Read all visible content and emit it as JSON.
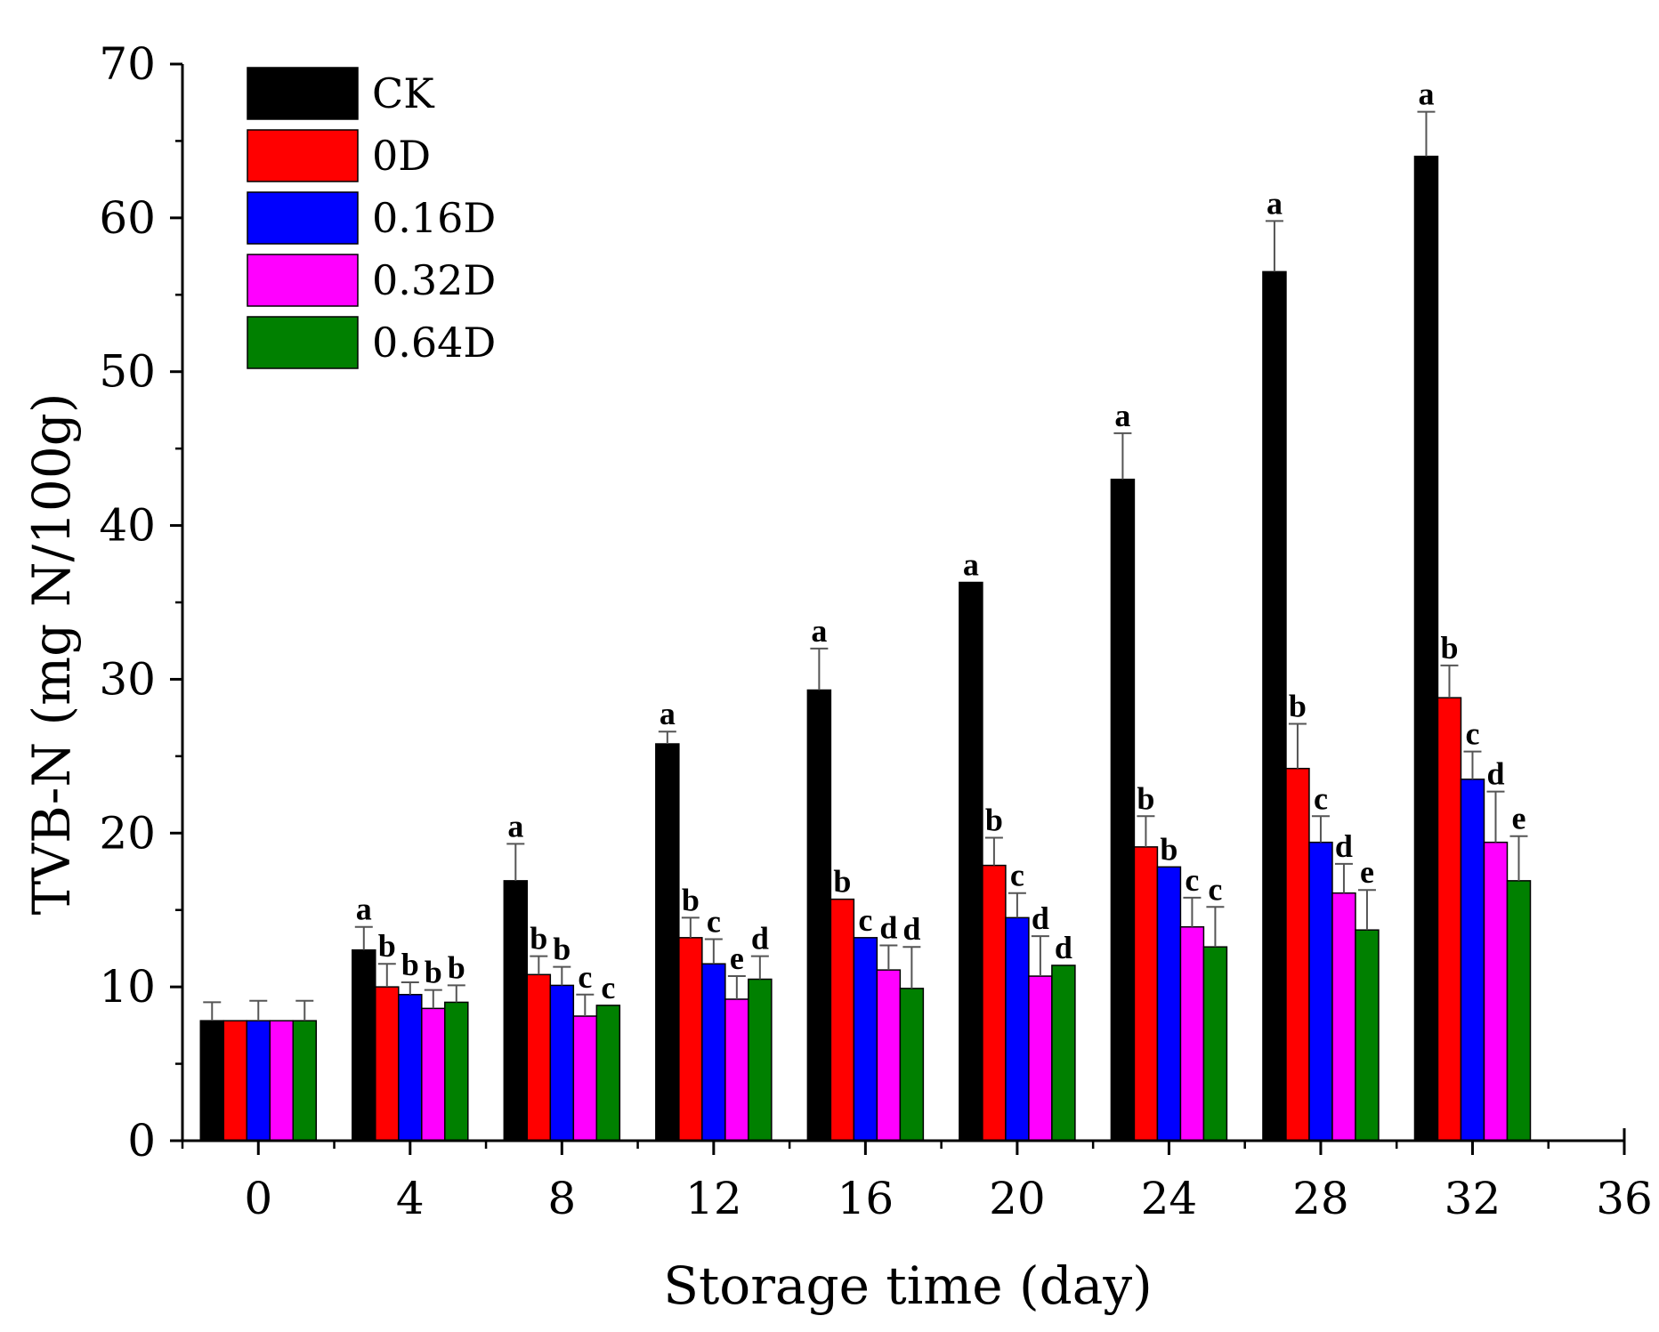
{
  "chart_data": {
    "type": "bar",
    "xlabel": "Storage time (day)",
    "ylabel": "TVB-N (mg N/100g)",
    "xlim": [
      -2,
      36
    ],
    "ylim": [
      0,
      70
    ],
    "x_ticks": [
      0,
      4,
      8,
      12,
      16,
      20,
      24,
      28,
      32,
      36
    ],
    "y_ticks": [
      0,
      10,
      20,
      30,
      40,
      50,
      60,
      70
    ],
    "categories": [
      0,
      4,
      8,
      12,
      16,
      20,
      24,
      28,
      32
    ],
    "legend_position": "top-left",
    "series": [
      {
        "name": "CK",
        "color": "#000000",
        "values": [
          7.8,
          12.4,
          16.9,
          25.8,
          29.3,
          36.3,
          43.0,
          56.5,
          64.0
        ],
        "errors": [
          1.2,
          1.5,
          2.4,
          0.8,
          2.7,
          0,
          3.0,
          3.3,
          2.9
        ],
        "letters": [
          "",
          "a",
          "a",
          "a",
          "a",
          "a",
          "a",
          "a",
          "a"
        ]
      },
      {
        "name": "0D",
        "color": "#ff0000",
        "values": [
          7.8,
          10.0,
          10.8,
          13.2,
          15.7,
          17.9,
          19.1,
          24.2,
          28.8
        ],
        "errors": [
          0,
          1.5,
          1.2,
          1.3,
          0,
          1.8,
          2.0,
          2.9,
          2.1
        ],
        "letters": [
          "",
          "b",
          "b",
          "b",
          "b",
          "b",
          "b",
          "b",
          "b"
        ]
      },
      {
        "name": "0.16D",
        "color": "#0000ff",
        "values": [
          7.8,
          9.5,
          10.1,
          11.5,
          13.2,
          14.5,
          17.8,
          19.4,
          23.5
        ],
        "errors": [
          1.3,
          0.8,
          1.2,
          1.6,
          0,
          1.6,
          0,
          1.7,
          1.8
        ],
        "letters": [
          "",
          "b",
          "b",
          "c",
          "c",
          "c",
          "b",
          "c",
          "c"
        ]
      },
      {
        "name": "0.32D",
        "color": "#ff00ff",
        "values": [
          7.8,
          8.6,
          8.1,
          9.2,
          11.1,
          10.7,
          13.9,
          16.1,
          19.4
        ],
        "errors": [
          0,
          1.2,
          1.4,
          1.5,
          1.6,
          2.6,
          1.9,
          1.9,
          3.3
        ],
        "letters": [
          "",
          "b",
          "c",
          "e",
          "d",
          "d",
          "c",
          "d",
          "d"
        ]
      },
      {
        "name": "0.64D",
        "color": "#008000",
        "values": [
          7.8,
          9.0,
          8.8,
          10.5,
          9.9,
          11.4,
          12.6,
          13.7,
          16.9
        ],
        "errors": [
          1.3,
          1.1,
          0,
          1.5,
          2.7,
          0,
          2.6,
          2.6,
          2.9
        ],
        "letters": [
          "",
          "b",
          "c",
          "d",
          "d",
          "d",
          "c",
          "e",
          "e"
        ]
      }
    ]
  }
}
